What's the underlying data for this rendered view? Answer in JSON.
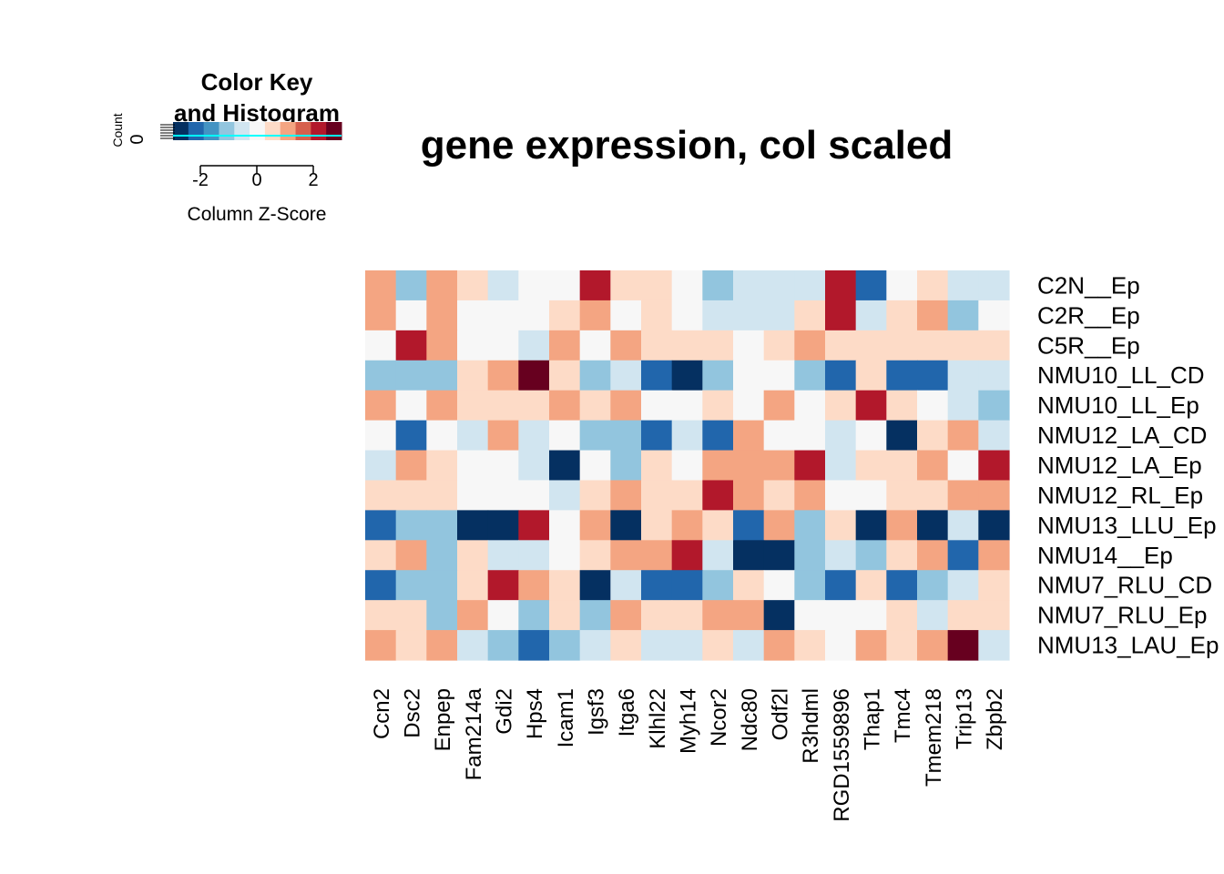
{
  "chart_data": {
    "type": "heatmap",
    "title": "gene expression, col scaled",
    "columns": [
      "Ccn2",
      "Dsc2",
      "Enpep",
      "Fam214a",
      "Gdi2",
      "Hps4",
      "Icam1",
      "Igsf3",
      "Itga6",
      "Klhl22",
      "Myh14",
      "Ncor2",
      "Ndc80",
      "Odf2l",
      "R3hdml",
      "RGD1559896",
      "Thap1",
      "Tmc4",
      "Tmem218",
      "Trip13",
      "Zbpb2"
    ],
    "rows": [
      "C2N__Ep",
      "C2R__Ep",
      "C5R__Ep",
      "NMU10_LL_CD",
      "NMU10_LL_Ep",
      "NMU12_LA_CD",
      "NMU12_LA_Ep",
      "NMU12_RL_Ep",
      "NMU13_LLU_Ep",
      "NMU14__Ep",
      "NMU7_RLU_CD",
      "NMU7_RLU_Ep",
      "NMU13_LAU_Ep"
    ],
    "values": [
      [
        1.5,
        -1.5,
        1.5,
        0.5,
        -0.5,
        0,
        0,
        2.5,
        0.5,
        0.5,
        0,
        -1.5,
        -0.5,
        -0.5,
        -0.5,
        2.5,
        -2.5,
        0,
        0.5,
        -0.5,
        -0.5
      ],
      [
        1.5,
        0,
        1.5,
        0,
        0,
        0,
        0.5,
        1.5,
        0,
        0.5,
        0,
        -0.5,
        -0.5,
        -0.5,
        0.5,
        2.5,
        -0.5,
        0.5,
        1.5,
        -1.5,
        0
      ],
      [
        0,
        2.5,
        1.5,
        0,
        0,
        -0.5,
        1.5,
        0,
        1.5,
        0.5,
        0.5,
        0.5,
        0,
        0.5,
        1.5,
        0.5,
        0.5,
        0.5,
        0.5,
        0.5,
        0.5
      ],
      [
        -1.5,
        -1.5,
        -1.5,
        0.5,
        1.5,
        3.5,
        0.5,
        -1.5,
        -0.5,
        -2.5,
        -3,
        -1.5,
        0,
        0,
        -1.5,
        -2.5,
        0.5,
        -2.5,
        -2.5,
        -0.5,
        -0.5
      ],
      [
        1.5,
        0,
        1.5,
        0.5,
        0.5,
        0.5,
        1.5,
        0.5,
        1.5,
        0,
        0,
        0.5,
        0,
        1.5,
        0,
        0.5,
        2.5,
        0.5,
        0,
        -0.5,
        -1.5
      ],
      [
        0,
        -2.5,
        0,
        -0.5,
        1.5,
        -0.5,
        0,
        -1.5,
        -1.5,
        -2.5,
        -0.5,
        -2.5,
        1.5,
        0,
        0,
        -0.5,
        0,
        -3,
        0.5,
        1.5,
        -0.5
      ],
      [
        -0.5,
        1.5,
        0.5,
        0,
        0,
        -0.5,
        -3.5,
        0,
        -1.5,
        0.5,
        0,
        1.5,
        1.5,
        1.5,
        2.5,
        -0.5,
        0.5,
        0.5,
        1.5,
        0,
        2.5
      ],
      [
        0.5,
        0.5,
        0.5,
        0,
        0,
        0,
        -0.5,
        0.5,
        1.5,
        0.5,
        0.5,
        2.5,
        1.5,
        0.5,
        1.5,
        0,
        0,
        0.5,
        0.5,
        1.5,
        1.5
      ],
      [
        -2.5,
        -1.5,
        -1.5,
        -3.5,
        -3,
        2.5,
        0,
        1.5,
        -3,
        0.5,
        1.5,
        0.5,
        -2.5,
        1.5,
        -1.5,
        0.5,
        -3,
        1.5,
        -3,
        -0.5,
        -3
      ],
      [
        0.5,
        1.5,
        -1.5,
        0.5,
        -0.5,
        -0.5,
        0,
        0.5,
        1.5,
        1.5,
        2.5,
        -0.5,
        -3,
        -3,
        -1.5,
        -0.5,
        -1.5,
        0.5,
        1.5,
        -2.5,
        1.5
      ],
      [
        -2.5,
        -1.5,
        -1.5,
        0.5,
        2.5,
        1.5,
        0.5,
        -3,
        -0.5,
        -2.5,
        -2.5,
        -1.5,
        0.5,
        0,
        -1.5,
        -2.5,
        0.5,
        -2.5,
        -1.5,
        -0.5,
        0.5
      ],
      [
        0.5,
        0.5,
        -1.5,
        1.5,
        0,
        -1.5,
        0.5,
        -1.5,
        1.5,
        0.5,
        0.5,
        1.5,
        1.5,
        -3,
        0,
        0,
        0,
        0.5,
        -0.5,
        0.5,
        0.5
      ],
      [
        1.5,
        0.5,
        1.5,
        -0.5,
        -1.5,
        -2.5,
        -1.5,
        -0.5,
        0.5,
        -0.5,
        -0.5,
        0.5,
        -0.5,
        1.5,
        0.5,
        0,
        1.5,
        0.5,
        1.5,
        3.5,
        -0.5
      ]
    ],
    "colors": [
      "#053061",
      "#2166AC",
      "#4393C3",
      "#92C5DE",
      "#D1E5F0",
      "#F7F7F7",
      "#FDDBC7",
      "#F4A582",
      "#D6604D",
      "#B2182B",
      "#67001F"
    ],
    "key": {
      "title_line1": "Color Key",
      "title_line2": "and Histogram",
      "xlabel": "Column Z-Score",
      "ylabel": "Count",
      "ytick": "0",
      "xticks": [
        "-2",
        "0",
        "2"
      ],
      "range": [
        -3.5,
        3.5
      ]
    }
  }
}
